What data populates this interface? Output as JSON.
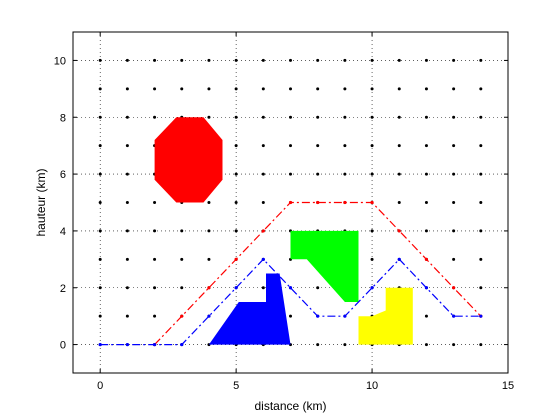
{
  "chart_data": {
    "type": "line",
    "xlabel": "distance (km)",
    "ylabel": "hauteur (km)",
    "xlim": [
      -1,
      15
    ],
    "ylim": [
      -1,
      11
    ],
    "xticks": [
      0,
      5,
      10,
      15
    ],
    "yticks": [
      0,
      2,
      4,
      6,
      8,
      10
    ],
    "grid": true,
    "grid_style": "dotted",
    "grid_points": {
      "x_range": [
        0,
        14
      ],
      "y_range": [
        0,
        10
      ],
      "step": 1,
      "marker": "dot",
      "color": "#000000"
    },
    "series": [
      {
        "color": "#ff0000",
        "style": "dash-dot",
        "marker": "dot",
        "x": [
          2,
          3,
          4,
          5,
          6,
          7,
          8,
          9,
          10,
          11,
          12,
          13,
          14
        ],
        "y": [
          0,
          1,
          2,
          3,
          4,
          5,
          5,
          5,
          5,
          4,
          3,
          2,
          1
        ]
      },
      {
        "color": "#0000ff",
        "style": "dash-dot",
        "marker": "dot",
        "x": [
          0,
          1,
          2,
          3,
          4,
          5,
          6,
          7,
          8,
          9,
          10,
          11,
          12,
          13,
          14
        ],
        "y": [
          0,
          0,
          0,
          0,
          1,
          2,
          3,
          2,
          1,
          1,
          2,
          3,
          2,
          1,
          1
        ]
      }
    ],
    "obstacles": [
      {
        "name": "octagon",
        "color": "#ff0000",
        "points": [
          [
            3.8,
            8
          ],
          [
            2.8,
            8
          ],
          [
            2,
            7.2
          ],
          [
            2,
            5.8
          ],
          [
            2.8,
            5
          ],
          [
            3.8,
            5
          ],
          [
            4.5,
            5.8
          ],
          [
            4.5,
            7.2
          ]
        ]
      },
      {
        "name": "blue-shape",
        "color": "#0000ff",
        "points": [
          [
            4,
            0
          ],
          [
            7,
            0
          ],
          [
            6.6,
            2.5
          ],
          [
            6.1,
            2.5
          ],
          [
            6.1,
            1.5
          ],
          [
            5.1,
            1.5
          ]
        ]
      },
      {
        "name": "green-shape",
        "color": "#00ff00",
        "points": [
          [
            7,
            4
          ],
          [
            9.5,
            4
          ],
          [
            9.5,
            1.5
          ],
          [
            9,
            1.5
          ],
          [
            7.6,
            3
          ],
          [
            7,
            3
          ]
        ]
      },
      {
        "name": "yellow-shape",
        "color": "#ffff00",
        "points": [
          [
            9.5,
            0
          ],
          [
            11.5,
            0
          ],
          [
            11.5,
            2
          ],
          [
            10.5,
            2
          ],
          [
            10.5,
            1.2
          ],
          [
            10,
            1
          ],
          [
            9.5,
            1
          ]
        ]
      }
    ],
    "frame_color": "#000000",
    "background": "#ffffff"
  }
}
